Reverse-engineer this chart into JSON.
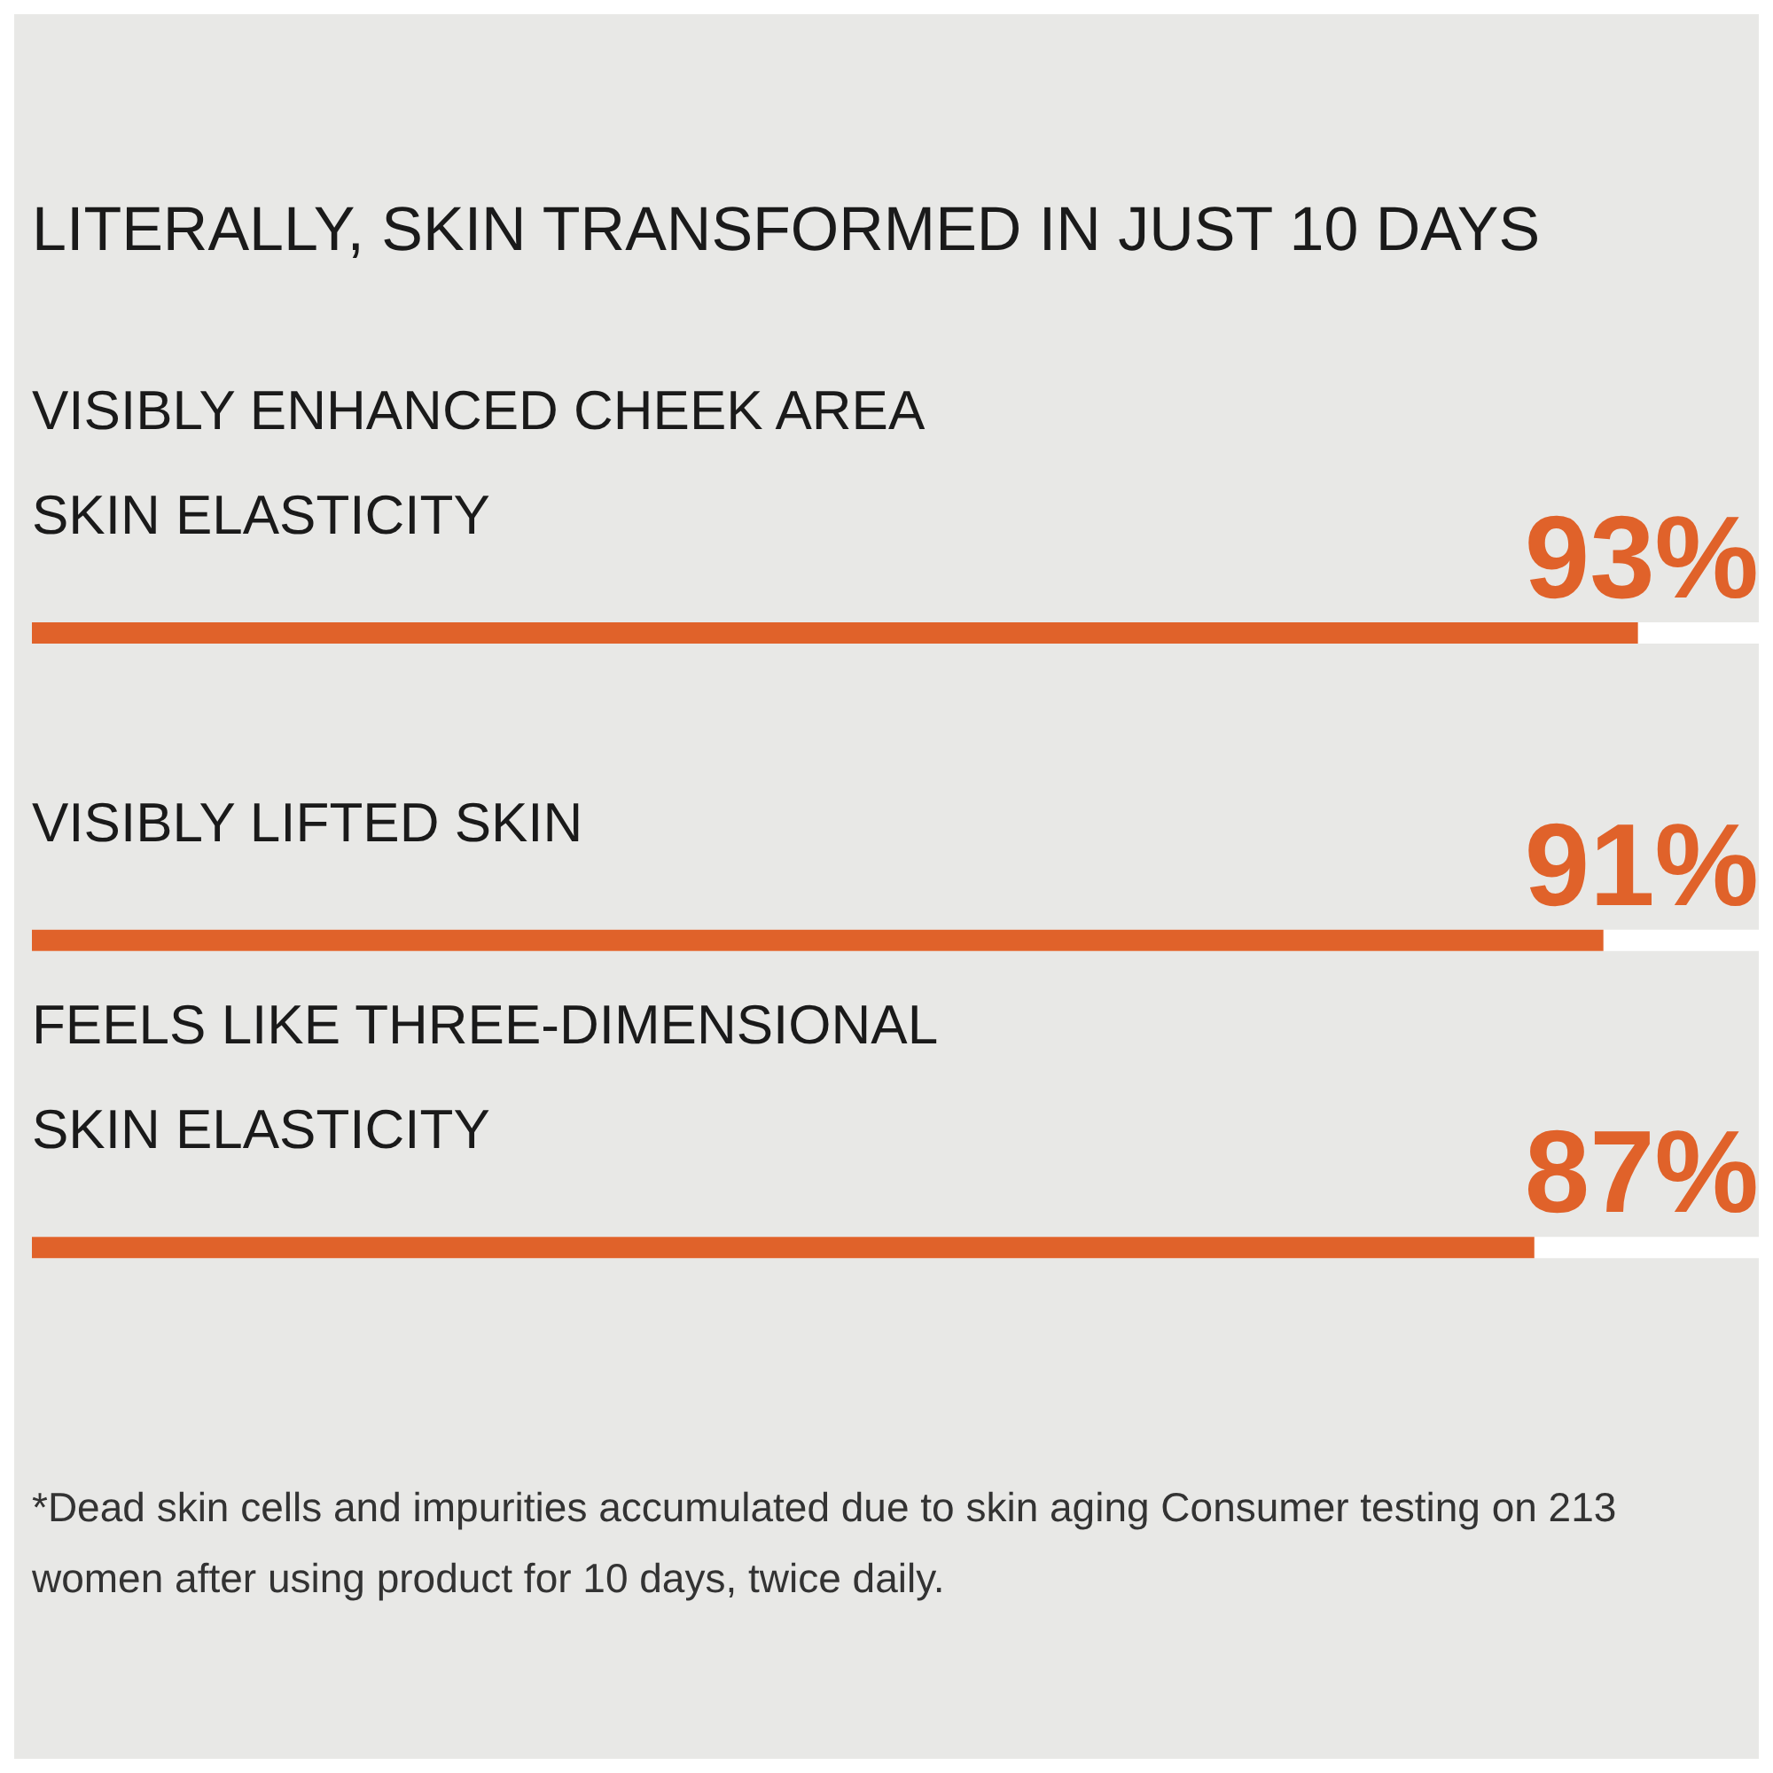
{
  "chart_data": {
    "type": "bar",
    "orientation": "horizontal",
    "title": "LITERALLY, SKIN TRANSFORMED IN JUST 10 DAYS",
    "categories": [
      "VISIBLY ENHANCED CHEEK AREA SKIN ELASTICITY",
      "VISIBLY LIFTED SKIN",
      "FEELS LIKE THREE-DIMENSIONAL SKIN ELASTICITY"
    ],
    "values": [
      93,
      91,
      87
    ],
    "value_labels": [
      "93%",
      "91%",
      "87%"
    ],
    "color": "#e0622a",
    "xlim": [
      0,
      100
    ],
    "tick_labels": "y",
    "annotations": [
      "*Dead skin cells and impurities accumulated due to skin aging Consumer testing on 213 women after using product for 10 days, twice daily."
    ]
  }
}
